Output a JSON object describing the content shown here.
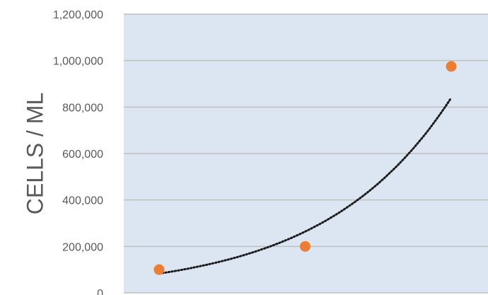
{
  "chart_data": {
    "type": "scatter",
    "ylabel": "CELLS / ML",
    "xlabel": "",
    "title": "",
    "ylim": [
      0,
      1200000
    ],
    "y_ticks": [
      0,
      200000,
      400000,
      600000,
      800000,
      1000000,
      1200000
    ],
    "y_tick_labels": [
      "0",
      "200,000",
      "400,000",
      "600,000",
      "800,000",
      "1,000,000",
      "1,200,000"
    ],
    "grid": true,
    "legend": "none",
    "series": [
      {
        "type": "scatter",
        "x": [
          1,
          2,
          3
        ],
        "values": [
          100000,
          200000,
          975000
        ],
        "color": "#ED7D31"
      }
    ],
    "trendline": {
      "type": "exponential",
      "style": "dotted",
      "color": "#1a1a1a",
      "x_start": 1,
      "x_end": 3,
      "y_start": 83000,
      "y_end": 840000
    },
    "plot_background": "#DCE6F2",
    "grid_color": "#BFBFBF",
    "tick_label_color": "#595959",
    "axis_title_color": "#595959"
  }
}
